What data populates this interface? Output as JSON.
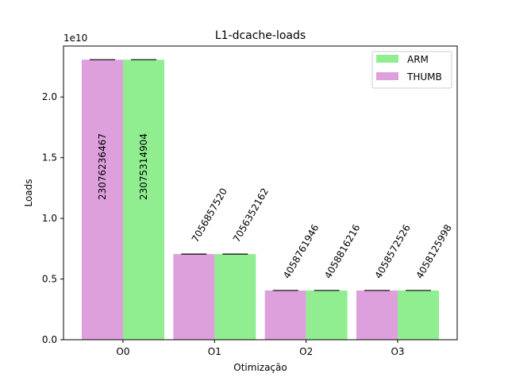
{
  "chart_data": {
    "type": "bar",
    "title": "L1-dcache-loads",
    "xlabel": "Otimização",
    "ylabel": "Loads",
    "offset_label": "1e10",
    "categories": [
      "O0",
      "O1",
      "O2",
      "O3"
    ],
    "yticks": [
      0.0,
      0.5,
      1.0,
      1.5,
      2.0
    ],
    "ytick_labels": [
      "0.0",
      "0.5",
      "1.0",
      "1.5",
      "2.0"
    ],
    "ylim": [
      0,
      24200000000
    ],
    "grid": false,
    "legend_position": "top-right",
    "series": [
      {
        "name": "THUMB",
        "color": "#dda0dd",
        "values": [
          23076236467,
          7056857520,
          4058761946,
          4058572526
        ],
        "labels": [
          "23076236467",
          "7056857520",
          "4058761946",
          "4058572526"
        ]
      },
      {
        "name": "ARM",
        "color": "#90ee90",
        "values": [
          23075314904,
          7056352162,
          4058816216,
          4058125998
        ],
        "labels": [
          "23075314904",
          "7056352162",
          "4058816216",
          "4058125998"
        ]
      }
    ],
    "legend": [
      {
        "name": "ARM",
        "color": "#90ee90"
      },
      {
        "name": "THUMB",
        "color": "#dda0dd"
      }
    ]
  }
}
